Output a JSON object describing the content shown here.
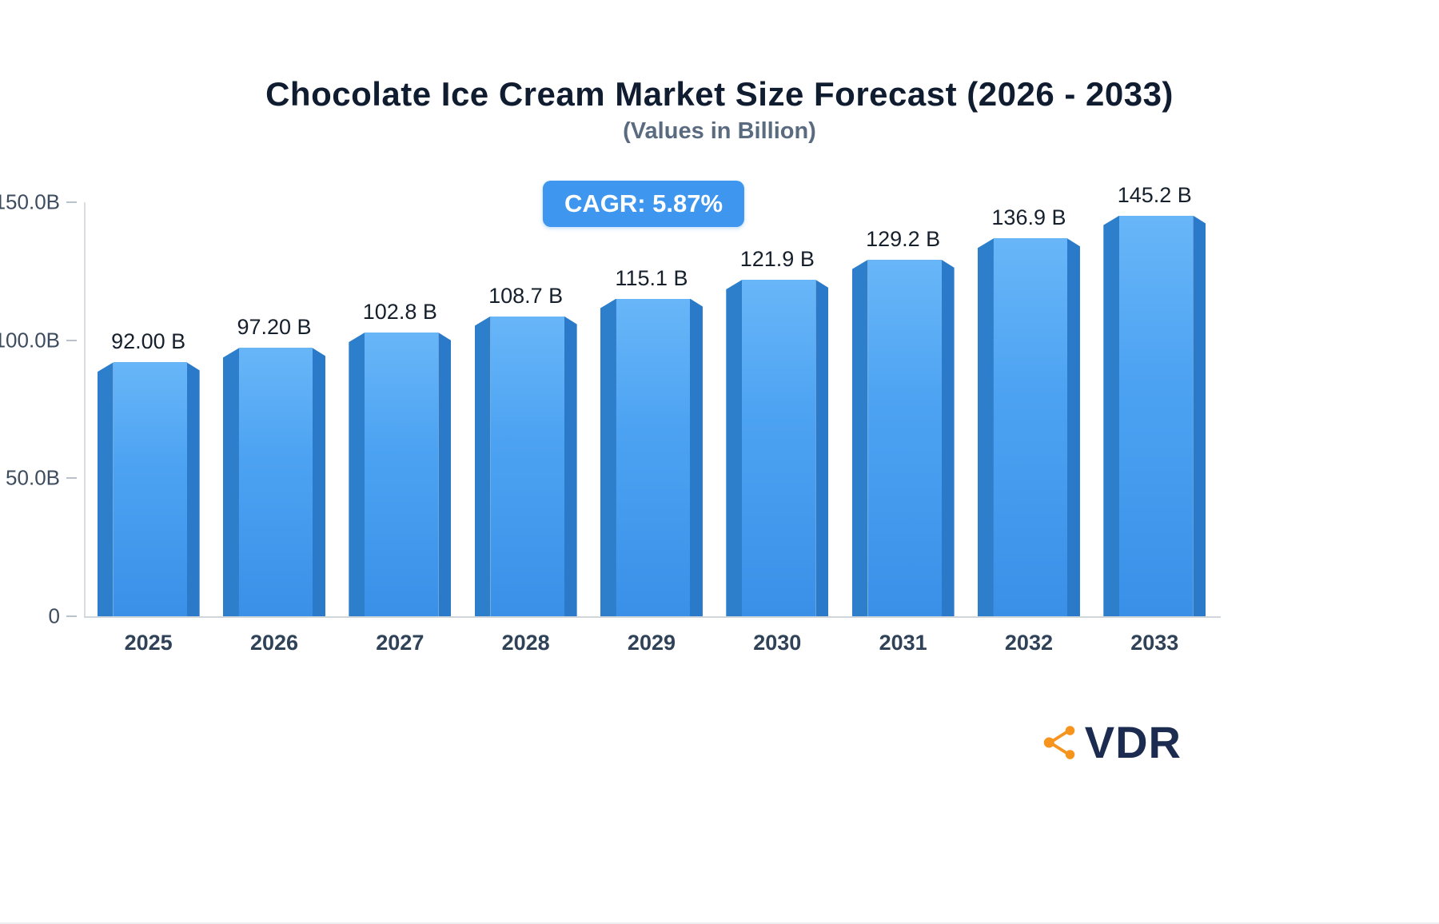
{
  "chart_data": {
    "type": "bar",
    "title": "Chocolate Ice Cream Market Size Forecast (2026 - 2033)",
    "subtitle": "(Values in Billion)",
    "annotation": "CAGR: 5.87%",
    "categories": [
      "2025",
      "2026",
      "2027",
      "2028",
      "2029",
      "2030",
      "2031",
      "2032",
      "2033"
    ],
    "values": [
      92.0,
      97.2,
      102.8,
      108.7,
      115.1,
      121.9,
      129.2,
      136.9,
      145.2
    ],
    "value_labels": [
      "92.00 B",
      "97.20 B",
      "102.8 B",
      "108.7 B",
      "115.1 B",
      "121.9 B",
      "129.2 B",
      "136.9 B",
      "145.2 B"
    ],
    "xlabel": "",
    "ylabel": "",
    "ylim": [
      0,
      150
    ],
    "yticks": [
      {
        "value": 150,
        "label": "150.0B"
      },
      {
        "value": 100,
        "label": "100.0B"
      },
      {
        "value": 50,
        "label": "50.0B"
      },
      {
        "value": 0,
        "label": "0"
      }
    ],
    "legend": "none",
    "grid": "off",
    "colors": {
      "bar_front_top": "#68b6f8",
      "bar_front_bottom": "#3a90e7",
      "bar_side_left": "#2d7ecb",
      "bar_side_right": "#2b7ac9",
      "badge_background": "#3e96ee",
      "badge_text": "#ffffff",
      "title_text": "#101c30",
      "subtitle_text": "#5a6b80",
      "axis_line": "#d9dde2"
    }
  },
  "branding": {
    "logo_text": "VDR",
    "logo_icon": "network-nodes-icon",
    "logo_icon_color": "#f7941d",
    "logo_text_color": "#1c2b50"
  }
}
